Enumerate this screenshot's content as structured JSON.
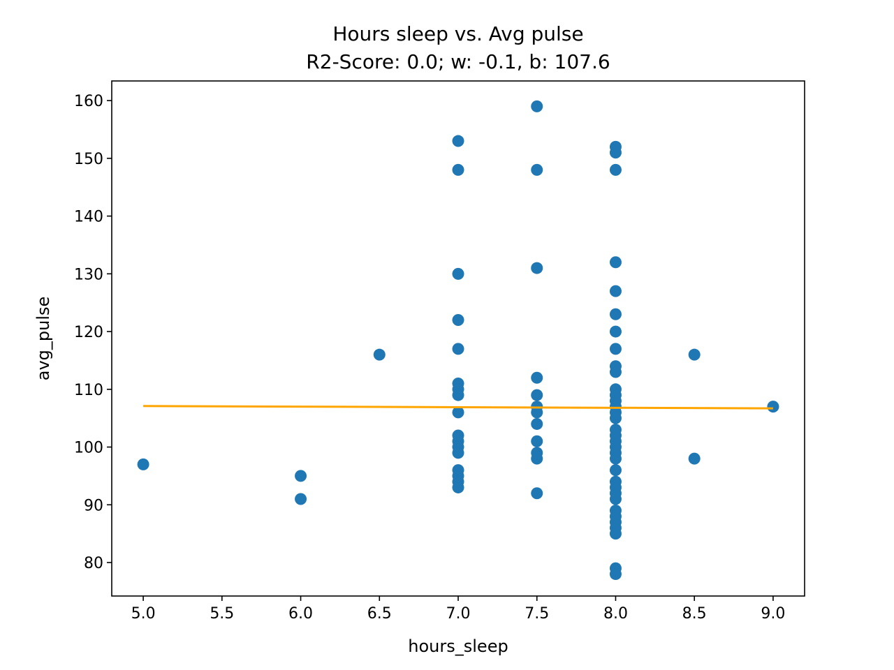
{
  "chart_data": {
    "type": "scatter",
    "title": "Hours sleep vs. Avg pulse",
    "subtitle": "R2-Score: 0.0; w: -0.1, b: 107.6",
    "xlabel": "hours_sleep",
    "ylabel": "avg_pulse",
    "xlim": [
      4.8,
      9.2
    ],
    "ylim": [
      74.2,
      163.4
    ],
    "xticks": [
      "5.0",
      "5.5",
      "6.0",
      "6.5",
      "7.0",
      "7.5",
      "8.0",
      "8.5",
      "9.0"
    ],
    "yticks": [
      "80",
      "90",
      "100",
      "110",
      "120",
      "130",
      "140",
      "150",
      "160"
    ],
    "grid": false,
    "series": [
      {
        "kind": "scatter",
        "color": "#1f77b4",
        "points": [
          [
            5.0,
            97
          ],
          [
            6.0,
            95
          ],
          [
            6.0,
            91
          ],
          [
            6.5,
            116
          ],
          [
            7.0,
            153
          ],
          [
            7.0,
            148
          ],
          [
            7.0,
            130
          ],
          [
            7.0,
            122
          ],
          [
            7.0,
            117
          ],
          [
            7.0,
            111
          ],
          [
            7.0,
            110
          ],
          [
            7.0,
            109
          ],
          [
            7.0,
            106
          ],
          [
            7.0,
            102
          ],
          [
            7.0,
            101
          ],
          [
            7.0,
            100
          ],
          [
            7.0,
            99
          ],
          [
            7.0,
            96
          ],
          [
            7.0,
            95
          ],
          [
            7.0,
            94
          ],
          [
            7.0,
            93
          ],
          [
            7.5,
            159
          ],
          [
            7.5,
            148
          ],
          [
            7.5,
            131
          ],
          [
            7.5,
            112
          ],
          [
            7.5,
            109
          ],
          [
            7.5,
            107
          ],
          [
            7.5,
            106
          ],
          [
            7.5,
            104
          ],
          [
            7.5,
            101
          ],
          [
            7.5,
            99
          ],
          [
            7.5,
            98
          ],
          [
            7.5,
            92
          ],
          [
            8.0,
            152
          ],
          [
            8.0,
            151
          ],
          [
            8.0,
            148
          ],
          [
            8.0,
            132
          ],
          [
            8.0,
            127
          ],
          [
            8.0,
            123
          ],
          [
            8.0,
            120
          ],
          [
            8.0,
            117
          ],
          [
            8.0,
            114
          ],
          [
            8.0,
            113
          ],
          [
            8.0,
            110
          ],
          [
            8.0,
            109
          ],
          [
            8.0,
            108
          ],
          [
            8.0,
            107
          ],
          [
            8.0,
            106
          ],
          [
            8.0,
            105
          ],
          [
            8.0,
            103
          ],
          [
            8.0,
            102
          ],
          [
            8.0,
            101
          ],
          [
            8.0,
            100
          ],
          [
            8.0,
            99
          ],
          [
            8.0,
            98
          ],
          [
            8.0,
            96
          ],
          [
            8.0,
            94
          ],
          [
            8.0,
            93
          ],
          [
            8.0,
            92
          ],
          [
            8.0,
            91
          ],
          [
            8.0,
            89
          ],
          [
            8.0,
            88
          ],
          [
            8.0,
            87
          ],
          [
            8.0,
            86
          ],
          [
            8.0,
            85
          ],
          [
            8.0,
            79
          ],
          [
            8.0,
            78
          ],
          [
            8.5,
            116
          ],
          [
            8.5,
            98
          ],
          [
            9.0,
            107
          ]
        ]
      },
      {
        "kind": "line",
        "color": "#ffa500",
        "points": [
          [
            5.0,
            107.1
          ],
          [
            9.0,
            106.7
          ]
        ]
      }
    ]
  }
}
